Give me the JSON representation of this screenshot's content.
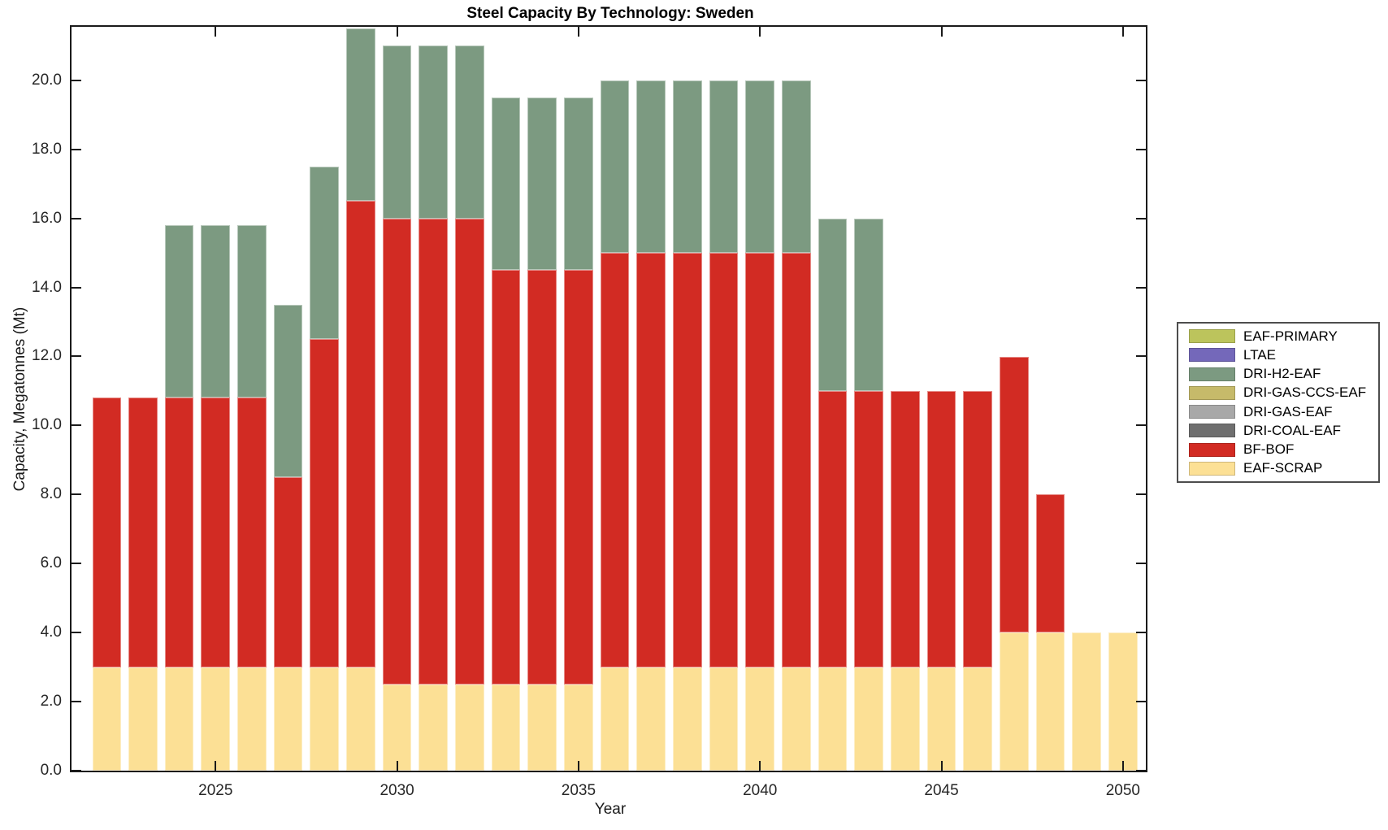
{
  "chart_data": {
    "type": "bar",
    "stacked": true,
    "title": "Steel Capacity By Technology: Sweden",
    "xlabel": "Year",
    "ylabel": "Capacity, Megatonnes (Mt)",
    "xlim": [
      2021.03,
      2050.63
    ],
    "ylim": [
      0,
      21.55
    ],
    "x_ticks": [
      2025,
      2030,
      2035,
      2040,
      2045,
      2050
    ],
    "y_ticks": [
      0,
      2,
      4,
      6,
      8,
      10,
      12,
      14,
      16,
      18,
      20
    ],
    "y_tick_decimals": 1,
    "grid": false,
    "legend_position": "center-right-outside",
    "bar_width_years": 0.8,
    "stack_order_bottom_to_top": [
      "EAF-SCRAP",
      "BF-BOF",
      "DRI-COAL-EAF",
      "DRI-GAS-EAF",
      "DRI-GAS-CCS-EAF",
      "DRI-H2-EAF",
      "LTAE",
      "EAF-PRIMARY"
    ],
    "categories": [
      2022,
      2023,
      2024,
      2025,
      2026,
      2027,
      2028,
      2029,
      2030,
      2031,
      2032,
      2033,
      2034,
      2035,
      2036,
      2037,
      2038,
      2039,
      2040,
      2041,
      2042,
      2043,
      2044,
      2045,
      2046,
      2047,
      2048,
      2049,
      2050
    ],
    "series": [
      {
        "name": "EAF-PRIMARY",
        "color": "#bcc45c",
        "values": [
          0,
          0,
          0,
          0,
          0,
          0,
          0,
          0,
          0,
          0,
          0,
          0,
          0,
          0,
          0,
          0,
          0,
          0,
          0,
          0,
          0,
          0,
          0,
          0,
          0,
          0,
          0,
          0,
          0
        ]
      },
      {
        "name": "LTAE",
        "color": "#7468ba",
        "values": [
          0,
          0,
          0,
          0,
          0,
          0,
          0,
          0,
          0,
          0,
          0,
          0,
          0,
          0,
          0,
          0,
          0,
          0,
          0,
          0,
          0,
          0,
          0,
          0,
          0,
          0,
          0,
          0,
          0
        ]
      },
      {
        "name": "DRI-H2-EAF",
        "color": "#7c9a81",
        "values": [
          0,
          0,
          5,
          5,
          5,
          5,
          5,
          5,
          5,
          5,
          5,
          5,
          5,
          5,
          5,
          5,
          5,
          5,
          5,
          5,
          5,
          5,
          0,
          0,
          0,
          0,
          0,
          0,
          0
        ]
      },
      {
        "name": "DRI-GAS-CCS-EAF",
        "color": "#c6ba6a",
        "values": [
          0,
          0,
          0,
          0,
          0,
          0,
          0,
          0,
          0,
          0,
          0,
          0,
          0,
          0,
          0,
          0,
          0,
          0,
          0,
          0,
          0,
          0,
          0,
          0,
          0,
          0,
          0,
          0,
          0
        ]
      },
      {
        "name": "DRI-GAS-EAF",
        "color": "#a8a8a8",
        "values": [
          0,
          0,
          0,
          0,
          0,
          0,
          0,
          0,
          0,
          0,
          0,
          0,
          0,
          0,
          0,
          0,
          0,
          0,
          0,
          0,
          0,
          0,
          0,
          0,
          0,
          0,
          0,
          0,
          0
        ]
      },
      {
        "name": "DRI-COAL-EAF",
        "color": "#6f6f6f",
        "values": [
          0,
          0,
          0,
          0,
          0,
          0,
          0,
          0,
          0,
          0,
          0,
          0,
          0,
          0,
          0,
          0,
          0,
          0,
          0,
          0,
          0,
          0,
          0,
          0,
          0,
          0,
          0,
          0,
          0
        ]
      },
      {
        "name": "BF-BOF",
        "color": "#d22b23",
        "values": [
          7.8,
          7.8,
          7.8,
          7.8,
          7.8,
          5.5,
          9.5,
          13.5,
          13.5,
          13.5,
          13.5,
          12,
          12,
          12,
          12,
          12,
          12,
          12,
          12,
          12,
          8,
          8,
          8,
          8,
          8,
          8,
          4,
          0,
          0
        ]
      },
      {
        "name": "EAF-SCRAP",
        "color": "#fce095",
        "values": [
          3,
          3,
          3,
          3,
          3,
          3,
          3,
          3,
          2.5,
          2.5,
          2.5,
          2.5,
          2.5,
          2.5,
          3,
          3,
          3,
          3,
          3,
          3,
          3,
          3,
          3,
          3,
          3,
          4,
          4,
          4,
          4
        ]
      }
    ]
  }
}
